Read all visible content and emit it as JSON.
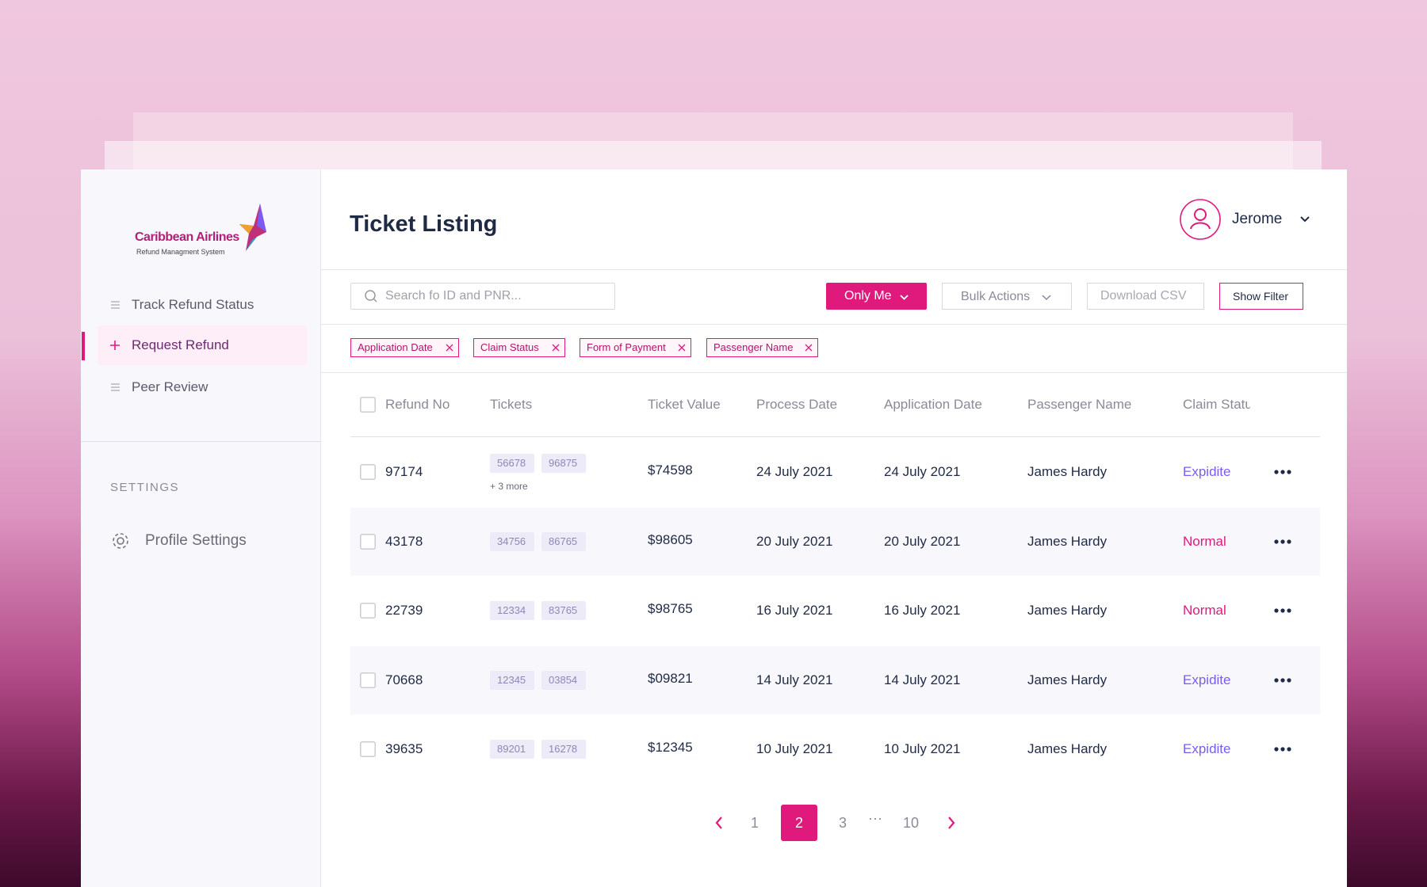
{
  "sidebar": {
    "brand": "Caribbean Airlines",
    "brand_subtitle": "Refund Managment System",
    "nav": [
      "Track Refund Status",
      "Request Refund",
      "Peer Review"
    ],
    "settings_label": "SETTINGS",
    "profile_settings": "Profile Settings"
  },
  "header": {
    "title": "Ticket Listing",
    "user": "Jerome"
  },
  "toolbar": {
    "search_placeholder": "Search fo ID and PNR...",
    "only_me": "Only Me",
    "bulk_actions": "Bulk Actions",
    "download_csv": "Download CSV",
    "show_filter": "Show Filter"
  },
  "filters": [
    "Application Date",
    "Claim Status",
    "Form of Payment",
    "Passenger Name"
  ],
  "table": {
    "columns": [
      "Refund No",
      "Tickets",
      "Ticket Value",
      "Process Date",
      "Application Date",
      "Passenger Name",
      "Claim Status"
    ],
    "rows": [
      {
        "refund_no": "97174",
        "tickets": [
          "56678",
          "96875"
        ],
        "more": "+ 3 more",
        "value": "$74598",
        "process_date": "24 July 2021",
        "application_date": "24 July 2021",
        "passenger": "James Hardy",
        "claim_status": "Expidite"
      },
      {
        "refund_no": "43178",
        "tickets": [
          "34756",
          "86765"
        ],
        "value": "$98605",
        "process_date": "20 July 2021",
        "application_date": "20 July 2021",
        "passenger": "James Hardy",
        "claim_status": "Normal"
      },
      {
        "refund_no": "22739",
        "tickets": [
          "12334",
          "83765"
        ],
        "value": "$98765",
        "process_date": "16 July 2021",
        "application_date": "16 July 2021",
        "passenger": "James Hardy",
        "claim_status": "Normal"
      },
      {
        "refund_no": "70668",
        "tickets": [
          "12345",
          "03854"
        ],
        "value": "$09821",
        "process_date": "14 July 2021",
        "application_date": "14 July 2021",
        "passenger": "James Hardy",
        "claim_status": "Expidite"
      },
      {
        "refund_no": "39635",
        "tickets": [
          "89201",
          "16278"
        ],
        "value": "$12345",
        "process_date": "10 July 2021",
        "application_date": "10 July 2021",
        "passenger": "James Hardy",
        "claim_status": "Expidite"
      }
    ]
  },
  "pagination": {
    "items": [
      "1",
      "2",
      "3",
      "···",
      "10"
    ],
    "active": 1
  }
}
